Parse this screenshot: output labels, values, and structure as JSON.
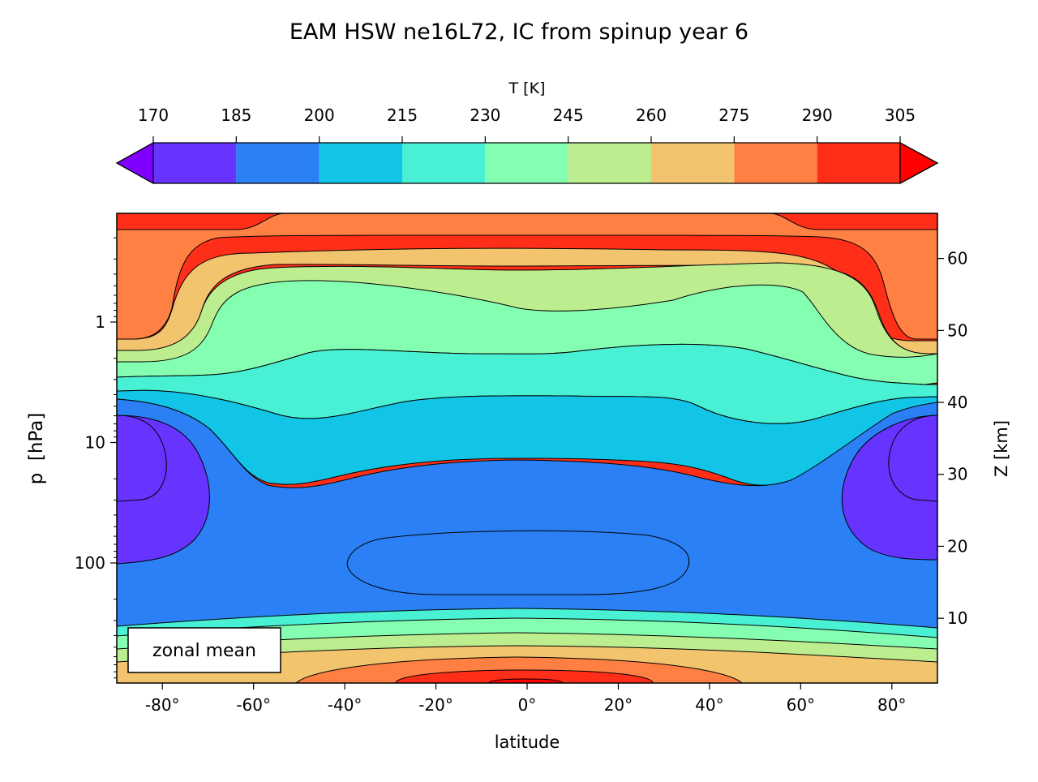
{
  "chart_data": {
    "type": "heatmap",
    "subtype": "filled-contour",
    "title": "EAM HSW ne16L72, IC from spinup year 6",
    "xlabel": "latitude",
    "ylabel": "p  [hPa]",
    "ylabel_right": "Z [km]",
    "annotation": "zonal mean",
    "colorbar": {
      "label": "T [K]",
      "levels": [
        170,
        185,
        200,
        215,
        230,
        245,
        260,
        275,
        290,
        305
      ],
      "tick_labels": [
        "170",
        "185",
        "200",
        "215",
        "230",
        "245",
        "260",
        "275",
        "290",
        "305"
      ],
      "colors": [
        "#6633ff",
        "#2a80f4",
        "#12c4e6",
        "#48f0d4",
        "#84ffb2",
        "#bcee90",
        "#f2c46e",
        "#ff8042",
        "#ff2e18"
      ],
      "under_color": "#8000ff",
      "over_color": "#ff0000",
      "extend": "both"
    },
    "xlim": [
      -90,
      90
    ],
    "x_ticks": [
      -80,
      -60,
      -40,
      -20,
      0,
      20,
      40,
      60,
      80
    ],
    "x_tick_labels": [
      "-80°",
      "-60°",
      "-40°",
      "-20°",
      "0°",
      "20°",
      "40°",
      "60°",
      "80°"
    ],
    "y_scale": "log",
    "y_inverted": true,
    "ylim_hpa": [
      1000,
      0.1
    ],
    "y_ticks_hpa": [
      1,
      10,
      100
    ],
    "y_tick_labels": [
      "1",
      "10",
      "100"
    ],
    "z_ticks_km": [
      10,
      20,
      30,
      40,
      50,
      60
    ],
    "z_tick_labels": [
      "10",
      "20",
      "30",
      "40",
      "50",
      "60"
    ],
    "background_band_K": "290-305",
    "regions": [
      {
        "band": "275-290",
        "lat": [
          -90,
          90
        ],
        "p_hpa": [
          0.13,
          1.3
        ]
      },
      {
        "band": "260-275",
        "lat": [
          -90,
          90
        ],
        "p_hpa": [
          0.22,
          1.6
        ]
      },
      {
        "band": "245-260",
        "lat": [
          -90,
          90
        ],
        "p_hpa": [
          0.4,
          2.2
        ]
      },
      {
        "band": "230-245",
        "lat": [
          -90,
          90
        ],
        "p_hpa": [
          1.6,
          5.5
        ]
      },
      {
        "band": "215-230",
        "lat": [
          -90,
          90
        ],
        "p_hpa": [
          2.8,
          20
        ]
      },
      {
        "band": "200-215",
        "lat": [
          -90,
          90
        ],
        "p_hpa": [
          6,
          420
        ]
      },
      {
        "band": "185-200",
        "lat": [
          -90,
          -60
        ],
        "p_hpa": [
          6,
          95
        ]
      },
      {
        "band": "185-200",
        "lat": [
          60,
          90
        ],
        "p_hpa": [
          6,
          95
        ]
      },
      {
        "band": "185-200",
        "lat": [
          -38,
          36
        ],
        "p_hpa": [
          60,
          170
        ]
      },
      {
        "band": "170-185",
        "lat": [
          -90,
          -80
        ],
        "p_hpa": [
          7,
          27
        ]
      },
      {
        "band": "170-185",
        "lat": [
          80,
          90
        ],
        "p_hpa": [
          7,
          27
        ]
      },
      {
        "band": "215-230",
        "lat": [
          -90,
          90
        ],
        "p_hpa": [
          270,
          1000
        ]
      },
      {
        "band": "230-245",
        "lat": [
          -90,
          90
        ],
        "p_hpa": [
          320,
          1000
        ]
      },
      {
        "band": "245-260",
        "lat": [
          -90,
          90
        ],
        "p_hpa": [
          420,
          1000
        ]
      },
      {
        "band": "260-275",
        "lat": [
          -90,
          90
        ],
        "p_hpa": [
          560,
          1000
        ]
      },
      {
        "band": "275-290",
        "lat": [
          -50,
          50
        ],
        "p_hpa": [
          800,
          1000
        ]
      },
      {
        "band": "290-305",
        "lat": [
          -28,
          28
        ],
        "p_hpa": [
          880,
          1000
        ]
      },
      {
        "band": ">305",
        "lat": [
          -7,
          9
        ],
        "p_hpa": [
          960,
          1000
        ]
      }
    ]
  }
}
